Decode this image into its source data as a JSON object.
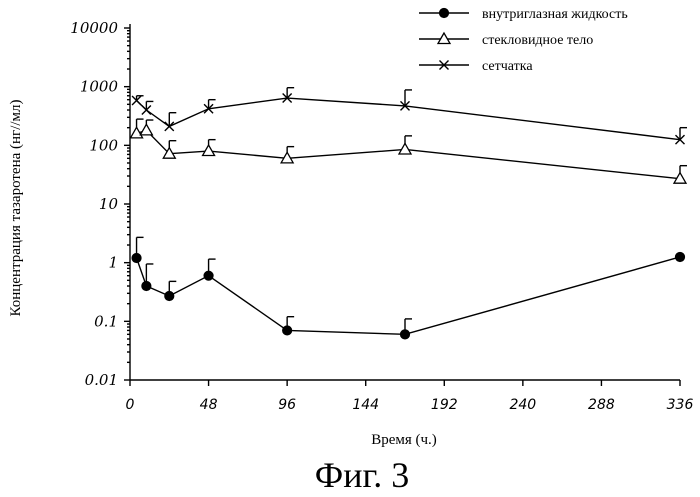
{
  "chart_data": {
    "type": "line",
    "title": "",
    "xlabel": "Время (ч.)",
    "ylabel": "Концентрация тазаротена (нг//мл)",
    "xlim": [
      0,
      336
    ],
    "ylim": [
      0.01,
      10000
    ],
    "y_scale": "log",
    "grid": false,
    "legend_position": "top-right",
    "x_ticks": [
      "0",
      "48",
      "96",
      "144",
      "192",
      "240",
      "288",
      "336"
    ],
    "x_tick_values": [
      0,
      48,
      96,
      144,
      192,
      240,
      288,
      336
    ],
    "y_ticks": [
      "0.01",
      "0.1",
      "1",
      "10",
      "100",
      "1000",
      "10000"
    ],
    "y_tick_values": [
      0.01,
      0.1,
      1,
      10,
      100,
      1000,
      10000
    ],
    "series": [
      {
        "name": "внутриглазная жидкость",
        "marker": "filled-circle",
        "x": [
          4,
          10,
          24,
          48,
          96,
          168,
          336
        ],
        "y": [
          1.2,
          0.4,
          0.27,
          0.6,
          0.07,
          0.06,
          1.25
        ],
        "err_upper": [
          2.7,
          0.95,
          0.48,
          1.15,
          0.12,
          0.11,
          null
        ]
      },
      {
        "name": "стекловидное тело",
        "marker": "open-triangle",
        "x": [
          4,
          10,
          24,
          48,
          96,
          168,
          336
        ],
        "y": [
          160,
          180,
          72,
          80,
          60,
          85,
          27
        ],
        "err_upper": [
          280,
          270,
          120,
          125,
          95,
          145,
          45
        ]
      },
      {
        "name": "сетчатка",
        "marker": "cross",
        "x": [
          4,
          10,
          24,
          48,
          96,
          168,
          336
        ],
        "y": [
          580,
          400,
          210,
          420,
          640,
          470,
          125
        ],
        "err_upper": [
          700,
          560,
          360,
          600,
          960,
          880,
          200
        ]
      }
    ]
  },
  "caption": "Фиг. 3"
}
